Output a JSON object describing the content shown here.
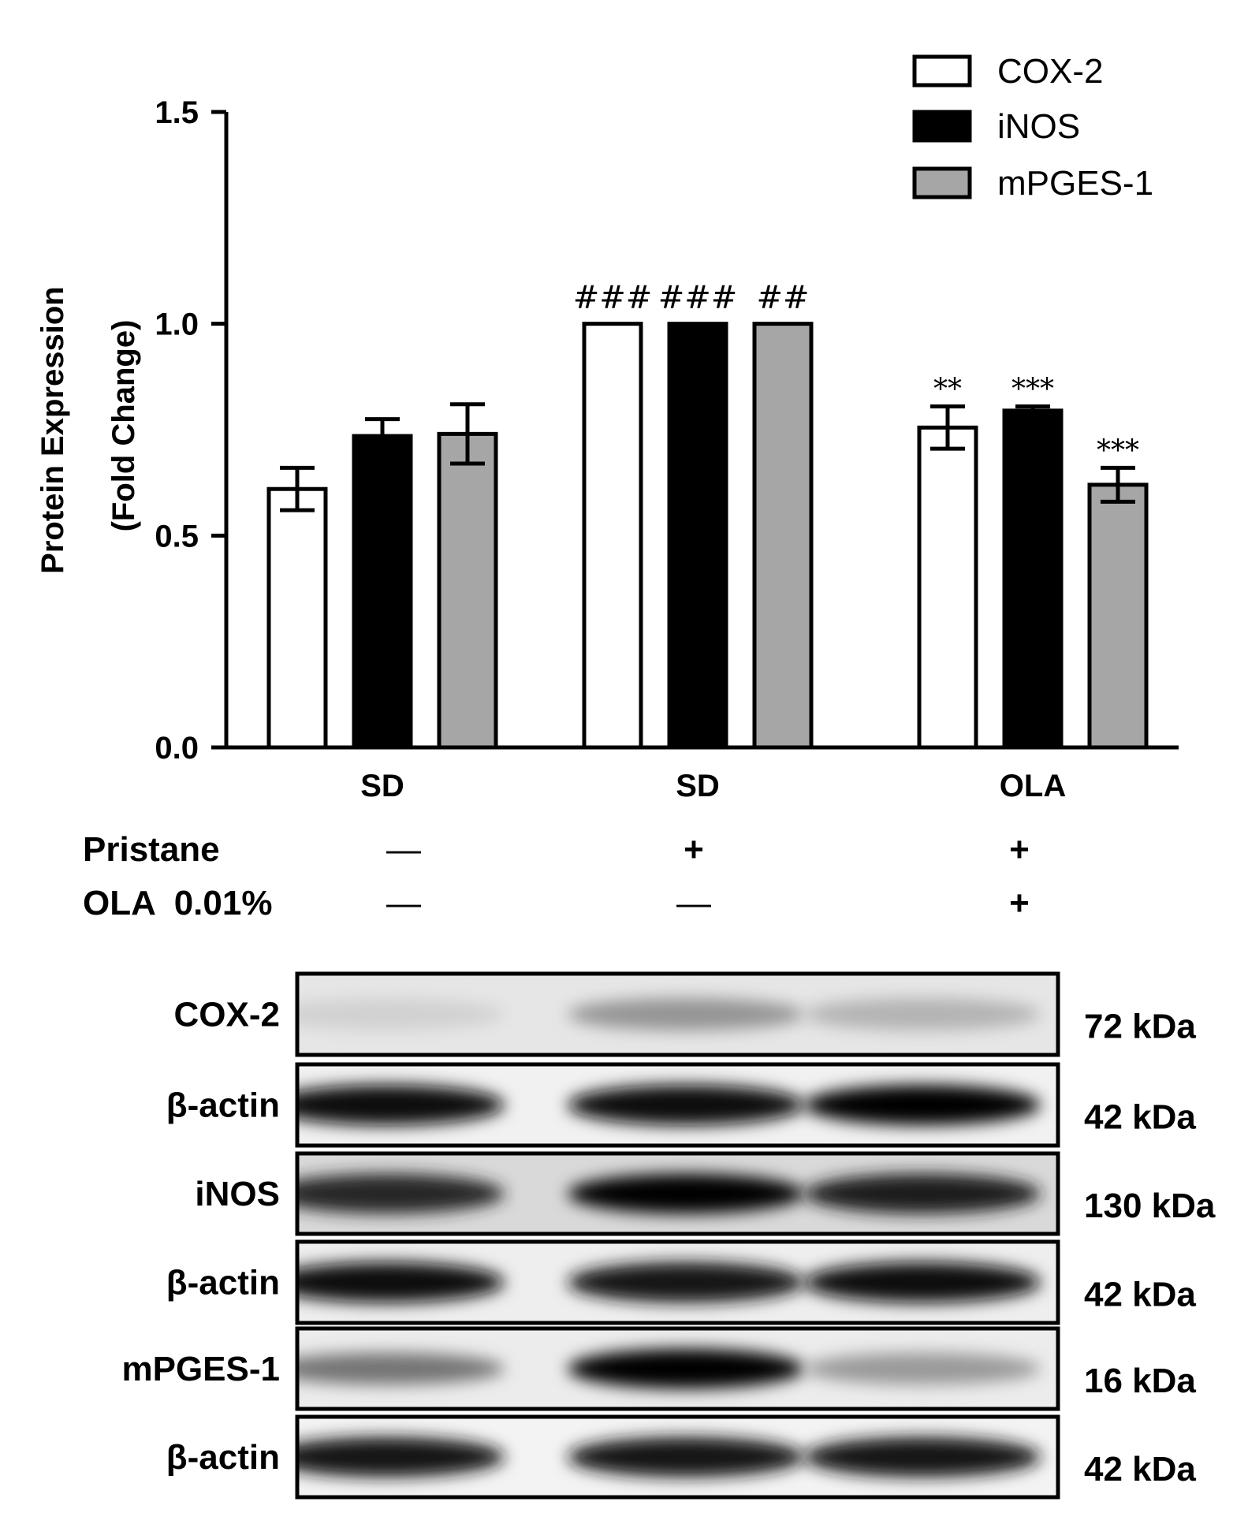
{
  "chart_data": {
    "type": "bar",
    "categories": [
      "SD",
      "SD",
      "OLA"
    ],
    "series": [
      {
        "name": "COX-2",
        "color": "#ffffff",
        "values": [
          0.61,
          1.0,
          0.755
        ],
        "errors": [
          0.05,
          0.0,
          0.05
        ],
        "significance": [
          "",
          "###",
          "**"
        ]
      },
      {
        "name": "iNOS",
        "color": "#000000",
        "values": [
          0.735,
          1.0,
          0.795
        ],
        "errors": [
          0.04,
          0.0,
          0.01
        ],
        "significance": [
          "",
          "###",
          "***"
        ]
      },
      {
        "name": "mPGES-1",
        "color": "#a6a6a6",
        "values": [
          0.74,
          1.0,
          0.62
        ],
        "errors": [
          0.07,
          0.0,
          0.04
        ],
        "significance": [
          "",
          "##",
          "***"
        ]
      }
    ],
    "ylabel_line1": "Protein Expression",
    "ylabel_line2": "(Fold Change)",
    "ylim": [
      0,
      1.5
    ],
    "yticks": [
      "0.0",
      "0.5",
      "1.0",
      "1.5"
    ],
    "ytick_values": [
      0,
      0.5,
      1.0,
      1.5
    ],
    "legend_position": "top-right",
    "grid": false
  },
  "treatment_table": {
    "rows": [
      {
        "label": "Pristane",
        "values": [
          "—",
          "+",
          "+"
        ]
      },
      {
        "label": "OLA  0.01%",
        "values": [
          "—",
          "—",
          "+"
        ]
      }
    ]
  },
  "western_blot": {
    "panels": [
      {
        "label": "COX-2",
        "size": "72 kDa",
        "intensity": [
          0.18,
          0.42,
          0.3
        ],
        "bg": "#e6e6e6"
      },
      {
        "label": "β-actin",
        "size": "42 kDa",
        "intensity": [
          0.95,
          0.95,
          0.98
        ],
        "bg": "#f1f1f1"
      },
      {
        "label": "iNOS",
        "size": "130 kDa",
        "intensity": [
          0.85,
          1.0,
          0.88
        ],
        "bg": "#d9d9d9"
      },
      {
        "label": "β-actin",
        "size": "42 kDa",
        "intensity": [
          0.95,
          0.93,
          0.94
        ],
        "bg": "#eeeeee"
      },
      {
        "label": "mPGES-1",
        "size": "16 kDa",
        "intensity": [
          0.55,
          1.0,
          0.4
        ],
        "bg": "#ececec"
      },
      {
        "label": "β-actin",
        "size": "42 kDa",
        "intensity": [
          0.9,
          0.92,
          0.9
        ],
        "bg": "#f3f3f3"
      }
    ]
  }
}
